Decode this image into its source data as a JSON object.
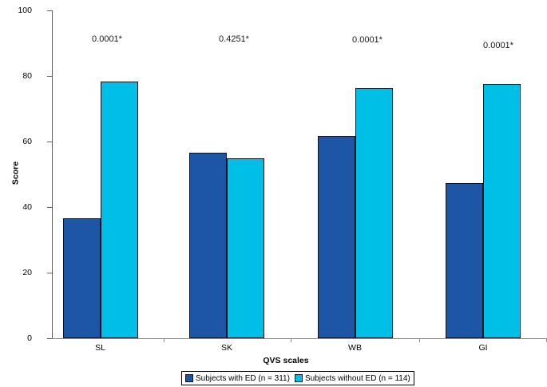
{
  "chart_data": {
    "type": "bar",
    "title": "",
    "xlabel": "QVS scales",
    "ylabel": "Score",
    "ylim": [
      0,
      100
    ],
    "ytick_interval": 20,
    "ytick_labels": [
      "0",
      "20",
      "40",
      "60",
      "80",
      "100"
    ],
    "categories": [
      "SL",
      "SK",
      "WB",
      "GI"
    ],
    "series": [
      {
        "name": "Subjects with ED (n = 311)",
        "color": "#1d56a5",
        "values": [
          36.6,
          56.7,
          61.6,
          47.3
        ]
      },
      {
        "name": "Subjects without ED (n = 114)",
        "color": "#00bfe7",
        "values": [
          78.4,
          54.8,
          76.4,
          77.5
        ]
      }
    ],
    "p_value_annotations": [
      "0.0001*",
      "0.4251*",
      "0.0001*",
      "0.0001*"
    ],
    "grid": "off",
    "legend_position": "bottom-center",
    "bar_border_color": "#0b1320"
  }
}
